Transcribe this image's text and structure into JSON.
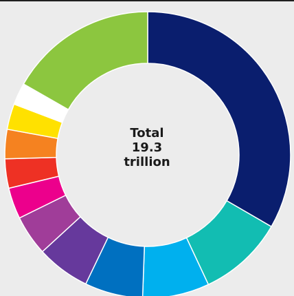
{
  "chart_data": {
    "type": "pie",
    "donut": true,
    "center_text": [
      "Total",
      "19.3",
      "trillion"
    ],
    "values": [
      6.45,
      1.87,
      1.46,
      1.27,
      1.17,
      0.88,
      0.68,
      0.64,
      0.64,
      0.56,
      0.48,
      3.24
    ],
    "colors": [
      "#0a1e6e",
      "#12bdb2",
      "#00b0ee",
      "#0070c0",
      "#66399c",
      "#a03d99",
      "#ec008c",
      "#ee3124",
      "#f58220",
      "#ffe100",
      "#ffffff",
      "#8cc63f"
    ],
    "start_angle_deg": 0,
    "direction": "clockwise",
    "grid": false,
    "legend": "none"
  }
}
